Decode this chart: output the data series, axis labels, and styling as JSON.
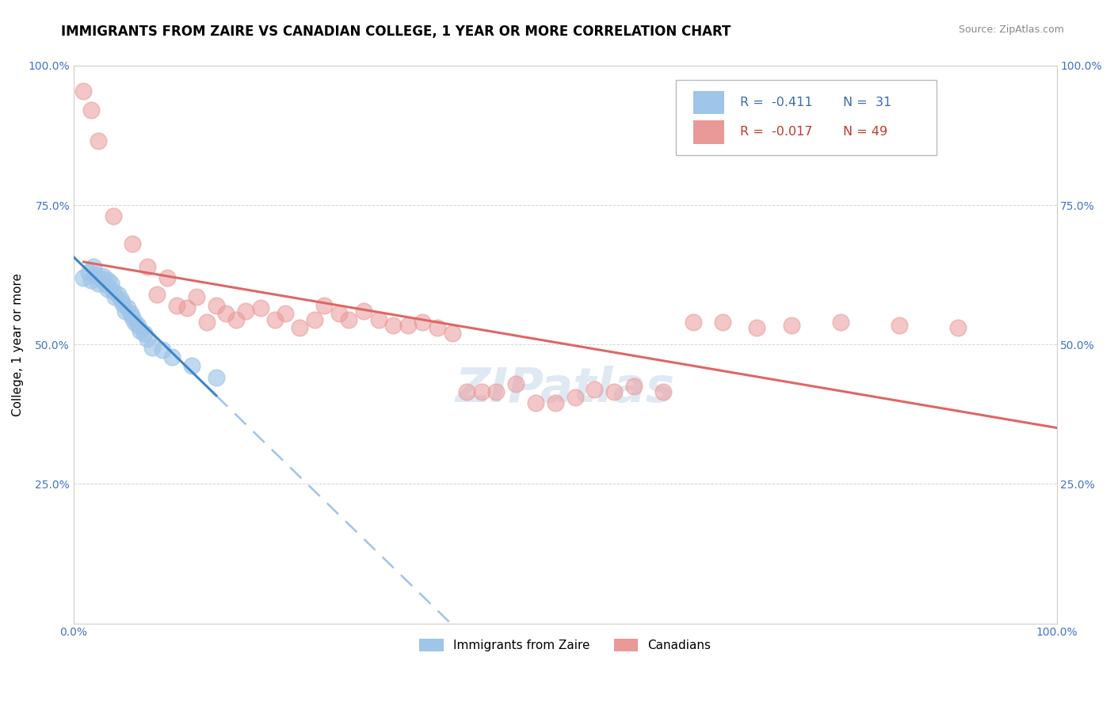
{
  "title": "IMMIGRANTS FROM ZAIRE VS CANADIAN COLLEGE, 1 YEAR OR MORE CORRELATION CHART",
  "source_text": "Source: ZipAtlas.com",
  "ylabel": "College, 1 year or more",
  "xlim": [
    0.0,
    1.0
  ],
  "ylim": [
    0.0,
    1.0
  ],
  "ytick_vals": [
    0.0,
    0.25,
    0.5,
    0.75,
    1.0
  ],
  "ytick_labels_left": [
    "",
    "25.0%",
    "50.0%",
    "75.0%",
    "100.0%"
  ],
  "ytick_labels_right": [
    "",
    "25.0%",
    "50.0%",
    "75.0%",
    "100.0%"
  ],
  "xtick_vals": [
    0.0,
    1.0
  ],
  "xtick_labels": [
    "0.0%",
    "100.0%"
  ],
  "legend_r1": "R =  -0.411",
  "legend_n1": "N =  31",
  "legend_r2": "R =  -0.017",
  "legend_n2": "N = 49",
  "legend_label1": "Immigrants from Zaire",
  "legend_label2": "Canadians",
  "color_blue": "#9fc5e8",
  "color_pink": "#ea9999",
  "color_blue_line": "#3d85c8",
  "color_pink_line": "#e06666",
  "color_blue_dashed": "#a0c4e8",
  "blue_x": [
    0.01,
    0.015,
    0.018,
    0.02,
    0.022,
    0.025,
    0.028,
    0.03,
    0.032,
    0.035,
    0.035,
    0.038,
    0.04,
    0.042,
    0.045,
    0.048,
    0.05,
    0.052,
    0.055,
    0.058,
    0.06,
    0.062,
    0.065,
    0.068,
    0.072,
    0.075,
    0.08,
    0.09,
    0.1,
    0.12,
    0.145
  ],
  "blue_y": [
    0.62,
    0.63,
    0.615,
    0.64,
    0.625,
    0.61,
    0.618,
    0.622,
    0.608,
    0.615,
    0.6,
    0.61,
    0.595,
    0.585,
    0.59,
    0.58,
    0.572,
    0.56,
    0.565,
    0.555,
    0.548,
    0.54,
    0.535,
    0.525,
    0.52,
    0.51,
    0.495,
    0.49,
    0.478,
    0.462,
    0.44
  ],
  "pink_x": [
    0.01,
    0.018,
    0.025,
    0.04,
    0.06,
    0.075,
    0.085,
    0.095,
    0.105,
    0.115,
    0.125,
    0.135,
    0.145,
    0.155,
    0.165,
    0.175,
    0.19,
    0.205,
    0.215,
    0.23,
    0.245,
    0.255,
    0.27,
    0.28,
    0.295,
    0.31,
    0.325,
    0.34,
    0.355,
    0.37,
    0.385,
    0.4,
    0.415,
    0.43,
    0.45,
    0.47,
    0.49,
    0.51,
    0.53,
    0.55,
    0.57,
    0.6,
    0.63,
    0.66,
    0.695,
    0.73,
    0.78,
    0.84,
    0.9
  ],
  "pink_y": [
    0.955,
    0.92,
    0.865,
    0.73,
    0.68,
    0.64,
    0.59,
    0.62,
    0.57,
    0.565,
    0.585,
    0.54,
    0.57,
    0.555,
    0.545,
    0.56,
    0.565,
    0.545,
    0.555,
    0.53,
    0.545,
    0.57,
    0.555,
    0.545,
    0.56,
    0.545,
    0.535,
    0.535,
    0.54,
    0.53,
    0.52,
    0.415,
    0.415,
    0.415,
    0.43,
    0.395,
    0.395,
    0.405,
    0.42,
    0.415,
    0.425,
    0.415,
    0.54,
    0.54,
    0.53,
    0.535,
    0.54,
    0.535,
    0.53
  ],
  "title_fontsize": 12,
  "source_fontsize": 9,
  "ylabel_fontsize": 11,
  "tick_fontsize": 10
}
